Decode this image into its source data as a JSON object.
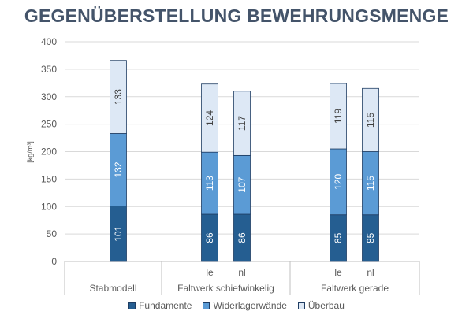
{
  "title": "GEGENÜBERSTELLUNG BEWEHRUNGSMENGE",
  "colors": {
    "title": "#44546a",
    "fundamente": "#255e91",
    "widerlagerwaende": "#5b9bd5",
    "ueberbau": "#dde8f5",
    "grid": "#d9d9d9",
    "axis": "#bfbfbf",
    "bar_border": "#1f3d63"
  },
  "chart_data": {
    "type": "bar",
    "stacked": true,
    "ylabel": "[kg/m³]",
    "ylim": [
      0,
      400
    ],
    "yticks": [
      0,
      50,
      100,
      150,
      200,
      250,
      300,
      350,
      400
    ],
    "grid": true,
    "legend_position": "bottom",
    "groups": [
      {
        "label": "Stabmodell",
        "bars": [
          ""
        ]
      },
      {
        "label": "Faltwerk schiefwinkelig",
        "bars": [
          "le",
          "nl"
        ]
      },
      {
        "label": "Faltwerk gerade",
        "bars": [
          "le",
          "nl"
        ]
      }
    ],
    "series": [
      {
        "name": "Fundamente",
        "values": [
          101,
          86,
          86,
          85,
          85
        ]
      },
      {
        "name": "Widerlagerwände",
        "values": [
          132,
          113,
          107,
          120,
          115
        ]
      },
      {
        "name": "Überbau",
        "values": [
          133,
          124,
          117,
          119,
          115
        ]
      }
    ]
  }
}
